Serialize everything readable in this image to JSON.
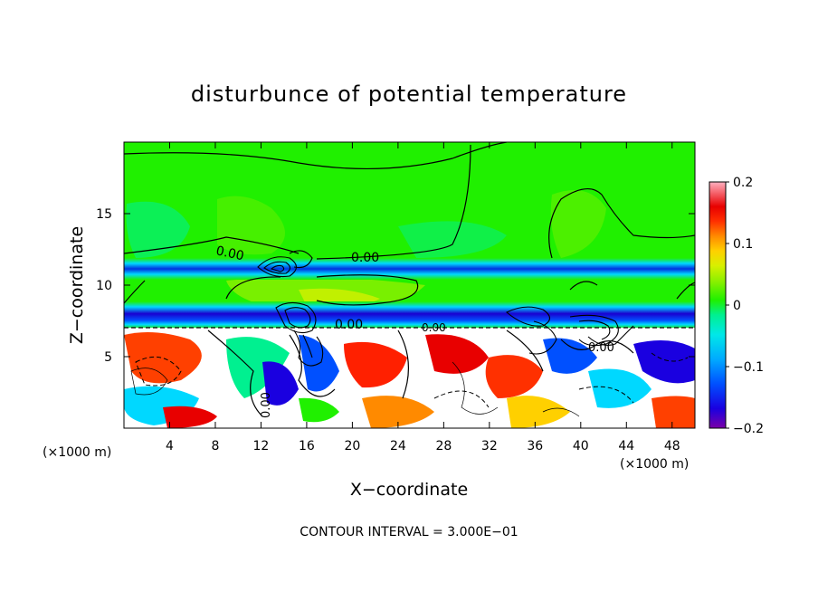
{
  "chart_data": {
    "type": "heatmap",
    "title": "disturbunce of potential temperature",
    "xlabel": "X−coordinate",
    "ylabel": "Z−coordinate",
    "x_unit_left": "(×1000 m)",
    "x_unit_right": "(×1000 m)",
    "x_ticks": [
      "4",
      "8",
      "12",
      "16",
      "20",
      "24",
      "28",
      "32",
      "36",
      "40",
      "44",
      "48"
    ],
    "x_tick_values": [
      4,
      8,
      12,
      16,
      20,
      24,
      28,
      32,
      36,
      40,
      44,
      48
    ],
    "y_ticks": [
      "5",
      "10",
      "15"
    ],
    "y_tick_values": [
      5,
      10,
      15
    ],
    "xlim": [
      0,
      50
    ],
    "ylim": [
      0,
      20
    ],
    "contour_interval_text": "CONTOUR INTERVAL = 3.000E−01",
    "contour_labels": [
      "0.00",
      "0.00",
      "0.00",
      "0.00",
      "0.00",
      "0.00"
    ],
    "colorbar": {
      "ticks": [
        "0.2",
        "0.1",
        "0",
        "−0.1",
        "−0.2"
      ],
      "tick_values": [
        0.2,
        0.1,
        0,
        -0.1,
        -0.2
      ],
      "range": [
        -0.2,
        0.2
      ]
    },
    "layers": [
      {
        "z_range": [
          17,
          20
        ],
        "value": 0.0
      },
      {
        "z_range": [
          12,
          17
        ],
        "value": 0.01
      },
      {
        "z_range": [
          10.5,
          11.5
        ],
        "value": -0.15
      },
      {
        "z_range": [
          8,
          9
        ],
        "value": -0.18
      },
      {
        "z_range": [
          0,
          7
        ],
        "value": "turbulent, -0.2 to 0.2"
      }
    ]
  }
}
